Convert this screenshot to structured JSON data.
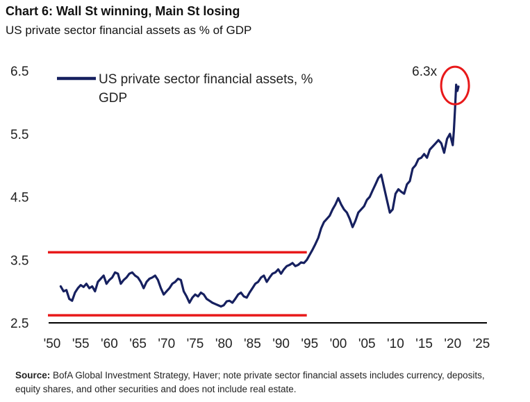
{
  "header": {
    "title": "Chart 6: Wall St winning, Main St losing",
    "subtitle": "US private sector financial assets as % of GDP"
  },
  "footer": {
    "source_label": "Source:",
    "source_text": "BofA Global Investment Strategy, Haver; note private sector financial assets includes currency, deposits,  equity shares, and other securities  and does not include  real estate."
  },
  "colors": {
    "series": "#16205f",
    "highlight": "#e8191a",
    "axis": "#000000"
  },
  "chart_data": {
    "type": "line",
    "title": "",
    "xlabel": "",
    "ylabel": "",
    "xlim": [
      1950,
      2025
    ],
    "ylim": [
      2.5,
      6.5
    ],
    "x_ticks": [
      1950,
      1955,
      1960,
      1965,
      1970,
      1975,
      1980,
      1985,
      1990,
      1995,
      2000,
      2005,
      2010,
      2015,
      2020,
      2025
    ],
    "x_tick_labels": [
      "'50",
      "'55",
      "'60",
      "'65",
      "'70",
      "'75",
      "'80",
      "'85",
      "'90",
      "'95",
      "'00",
      "'05",
      "'10",
      "'15",
      "'20",
      "'25"
    ],
    "y_ticks": [
      2.5,
      3.5,
      4.5,
      5.5,
      6.5
    ],
    "y_tick_labels": [
      "2.5",
      "3.5",
      "4.5",
      "5.5",
      "6.5"
    ],
    "grid": false,
    "legend": {
      "position": "top-left",
      "entries": [
        "US private sector financial assets, % GDP"
      ]
    },
    "reference_lines": [
      {
        "y": 3.62,
        "x_start": 1950,
        "x_end": 1994.5
      },
      {
        "y": 2.62,
        "x_start": 1950,
        "x_end": 1994.5
      }
    ],
    "annotations": [
      {
        "text": "6.3x",
        "x": 2020.4,
        "y": 6.3,
        "type": "circle-highlight"
      }
    ],
    "series": [
      {
        "name": "US private sector financial assets, % GDP",
        "x": [
          1951.5,
          1952,
          1952.5,
          1953,
          1953.5,
          1954,
          1954.5,
          1955,
          1955.5,
          1956,
          1956.5,
          1957,
          1957.5,
          1958,
          1958.5,
          1959,
          1959.5,
          1960,
          1960.5,
          1961,
          1961.5,
          1962,
          1962.5,
          1963,
          1963.5,
          1964,
          1964.5,
          1965,
          1965.5,
          1966,
          1966.5,
          1967,
          1967.5,
          1968,
          1968.5,
          1969,
          1969.5,
          1970,
          1970.5,
          1971,
          1971.5,
          1972,
          1972.5,
          1973,
          1973.5,
          1974,
          1974.5,
          1975,
          1975.5,
          1976,
          1976.5,
          1977,
          1977.5,
          1978,
          1978.5,
          1979,
          1979.5,
          1980,
          1980.5,
          1981,
          1981.5,
          1982,
          1982.5,
          1983,
          1983.5,
          1984,
          1984.5,
          1985,
          1985.5,
          1986,
          1986.5,
          1987,
          1987.5,
          1988,
          1988.5,
          1989,
          1989.5,
          1990,
          1990.5,
          1991,
          1991.5,
          1992,
          1992.5,
          1993,
          1993.5,
          1994,
          1994.5,
          1995,
          1995.5,
          1996,
          1996.5,
          1997,
          1997.5,
          1998,
          1998.5,
          1999,
          1999.5,
          2000,
          2000.5,
          2001,
          2001.5,
          2002,
          2002.5,
          2003,
          2003.5,
          2004,
          2004.5,
          2005,
          2005.5,
          2006,
          2006.5,
          2007,
          2007.5,
          2008,
          2008.5,
          2009,
          2009.5,
          2010,
          2010.5,
          2011,
          2011.5,
          2012,
          2012.5,
          2013,
          2013.5,
          2014,
          2014.5,
          2015,
          2015.5,
          2016,
          2016.5,
          2017,
          2017.5,
          2018,
          2018.5,
          2019,
          2019.5,
          2020,
          2020.2,
          2020.4,
          2020.6,
          2020.8,
          2021
        ],
        "values": [
          3.08,
          3.0,
          3.02,
          2.88,
          2.85,
          2.98,
          3.05,
          3.1,
          3.07,
          3.12,
          3.05,
          3.08,
          3.0,
          3.15,
          3.2,
          3.25,
          3.12,
          3.18,
          3.22,
          3.3,
          3.28,
          3.12,
          3.18,
          3.22,
          3.28,
          3.3,
          3.25,
          3.22,
          3.15,
          3.05,
          3.15,
          3.2,
          3.22,
          3.25,
          3.18,
          3.05,
          2.95,
          3.0,
          3.05,
          3.12,
          3.15,
          3.2,
          3.18,
          3.0,
          2.92,
          2.82,
          2.9,
          2.95,
          2.92,
          2.98,
          2.95,
          2.88,
          2.85,
          2.82,
          2.8,
          2.78,
          2.76,
          2.78,
          2.84,
          2.85,
          2.82,
          2.88,
          2.95,
          2.98,
          2.92,
          2.9,
          2.98,
          3.05,
          3.12,
          3.15,
          3.22,
          3.25,
          3.15,
          3.22,
          3.28,
          3.3,
          3.35,
          3.28,
          3.35,
          3.4,
          3.42,
          3.45,
          3.4,
          3.42,
          3.46,
          3.45,
          3.5,
          3.58,
          3.66,
          3.75,
          3.85,
          4.0,
          4.1,
          4.15,
          4.2,
          4.3,
          4.38,
          4.48,
          4.38,
          4.3,
          4.25,
          4.15,
          4.02,
          4.12,
          4.25,
          4.3,
          4.35,
          4.45,
          4.5,
          4.6,
          4.7,
          4.8,
          4.85,
          4.65,
          4.45,
          4.25,
          4.3,
          4.55,
          4.62,
          4.58,
          4.55,
          4.7,
          4.75,
          4.95,
          5.0,
          5.1,
          5.12,
          5.18,
          5.12,
          5.25,
          5.3,
          5.35,
          5.4,
          5.35,
          5.2,
          5.42,
          5.5,
          5.32,
          5.55,
          5.9,
          6.28,
          6.18,
          6.25
        ]
      }
    ]
  }
}
